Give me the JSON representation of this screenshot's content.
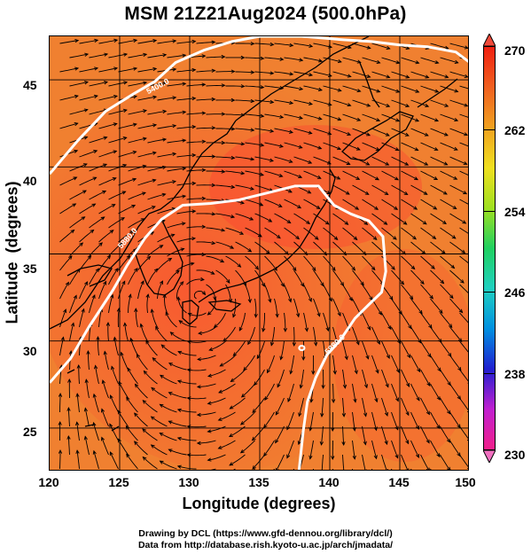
{
  "title": "MSM 21Z21Aug2024 (500.0hPa)",
  "x_axis": {
    "label": "Longitude (degrees)",
    "ticks": [
      "120",
      "125",
      "130",
      "135",
      "140",
      "145",
      "150"
    ]
  },
  "y_axis": {
    "label": "Latitude  (degrees)",
    "ticks": [
      "45",
      "40",
      "35",
      "30",
      "25"
    ]
  },
  "colorbar": {
    "ticks": [
      "270",
      "262",
      "254",
      "246",
      "238",
      "230"
    ],
    "colors": [
      "#f0208a",
      "#c020d0",
      "#2020d0",
      "#0090e0",
      "#20d0c0",
      "#20d060",
      "#a0e020",
      "#f0e020",
      "#f0a020",
      "#f06020",
      "#f02010"
    ]
  },
  "contour_labels": [
    "5400.0",
    "5880.0",
    "5880.0"
  ],
  "map_colors": {
    "warm": "#f06045",
    "hot": "#ff3a30",
    "orange": "#f08030",
    "contour": "#ffffff"
  },
  "credits": {
    "line1": "Drawing by DCL (https://www.gfd-dennou.org/library/dcl/)",
    "line2": "Data from http://database.rish.kyoto-u.ac.jp/arch/jmadata/"
  },
  "chart_data": {
    "type": "heatmap",
    "title": "MSM 21Z21Aug2024 (500.0hPa)",
    "xlabel": "Longitude (degrees)",
    "ylabel": "Latitude  (degrees)",
    "xlim": [
      120,
      150
    ],
    "ylim": [
      22.5,
      47.5
    ],
    "colorbar_range": [
      230,
      270
    ],
    "contours": [
      {
        "level": 5400,
        "label": "5400.0",
        "points": [
          [
            120,
            39.6
          ],
          [
            122,
            41.5
          ],
          [
            124,
            43.2
          ],
          [
            126,
            44.2
          ],
          [
            127.5,
            44.9
          ],
          [
            129,
            46.0
          ],
          [
            131,
            46.7
          ],
          [
            133,
            47.2
          ],
          [
            135,
            47.5
          ],
          [
            138,
            47.5
          ],
          [
            141,
            47.3
          ],
          [
            143,
            47.2
          ],
          [
            145,
            47.0
          ],
          [
            147,
            46.9
          ],
          [
            149,
            46.6
          ],
          [
            150,
            46.0
          ]
        ]
      },
      {
        "level": 5880,
        "label": "5880.0",
        "points": [
          [
            120,
            27.6
          ],
          [
            121.5,
            29.0
          ],
          [
            122.8,
            30.8
          ],
          [
            124.5,
            32.9
          ],
          [
            125.5,
            34.3
          ],
          [
            126.8,
            35.9
          ],
          [
            128.0,
            37.0
          ],
          [
            129.5,
            37.8
          ],
          [
            131.5,
            37.9
          ],
          [
            133.5,
            38.1
          ],
          [
            135.5,
            38.5
          ],
          [
            137.5,
            38.9
          ],
          [
            139.2,
            38.9
          ],
          [
            140.3,
            37.8
          ],
          [
            141.5,
            37.3
          ],
          [
            142.8,
            36.9
          ],
          [
            143.8,
            36.0
          ],
          [
            144.0,
            34.0
          ],
          [
            143.7,
            32.8
          ],
          [
            142.8,
            32.1
          ],
          [
            141.8,
            31.3
          ],
          [
            140.7,
            30.0
          ],
          [
            139.8,
            29.2
          ],
          [
            139.0,
            27.9
          ],
          [
            138.4,
            26.5
          ],
          [
            138.1,
            24.8
          ],
          [
            137.8,
            22.5
          ]
        ]
      }
    ]
  }
}
